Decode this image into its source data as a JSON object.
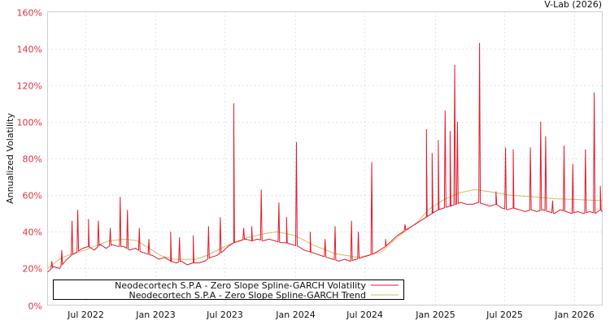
{
  "chart_data": {
    "type": "line",
    "title": "V-Lab (2026)",
    "xlabel": "",
    "ylabel": "Annualized Volatility",
    "ylim": [
      0,
      160
    ],
    "xlim": [
      "2022-03-25",
      "2026-03-15"
    ],
    "grid": true,
    "legend_placement": "bottom-left",
    "y_ticks": [
      "0%",
      "20%",
      "40%",
      "60%",
      "80%",
      "100%",
      "120%",
      "140%",
      "160%"
    ],
    "y_tick_values": [
      0,
      20,
      40,
      60,
      80,
      100,
      120,
      140,
      160
    ],
    "x_ticks": [
      "Jul 2022",
      "Jan 2023",
      "Jul 2023",
      "Jan 2024",
      "Jul 2024",
      "Jan 2025",
      "Jul 2025",
      "Jan 2026"
    ],
    "x_tick_dates": [
      "2022-07-01",
      "2023-01-01",
      "2023-07-01",
      "2024-01-01",
      "2024-07-01",
      "2025-01-01",
      "2025-07-01",
      "2026-01-01"
    ],
    "colors": {
      "volatility": "#e31a2a",
      "trend": "#d8b865",
      "ytick": "#e0303f"
    },
    "series": [
      {
        "name": "Neodecortech S.P.A - Zero Slope Spline-GARCH Volatility",
        "baseline": [
          [
            "2022-03-25",
            18
          ],
          [
            "2022-04-10",
            21
          ],
          [
            "2022-04-25",
            20
          ],
          [
            "2022-05-10",
            24
          ],
          [
            "2022-05-25",
            27
          ],
          [
            "2022-06-10",
            29
          ],
          [
            "2022-06-25",
            31
          ],
          [
            "2022-07-10",
            32
          ],
          [
            "2022-07-25",
            30
          ],
          [
            "2022-08-10",
            33
          ],
          [
            "2022-08-25",
            31
          ],
          [
            "2022-09-10",
            33
          ],
          [
            "2022-09-25",
            32
          ],
          [
            "2022-10-10",
            32
          ],
          [
            "2022-10-25",
            30
          ],
          [
            "2022-11-10",
            31
          ],
          [
            "2022-11-25",
            29
          ],
          [
            "2022-12-10",
            28
          ],
          [
            "2022-12-25",
            27
          ],
          [
            "2023-01-10",
            25
          ],
          [
            "2023-01-25",
            26
          ],
          [
            "2023-02-10",
            24
          ],
          [
            "2023-02-25",
            23
          ],
          [
            "2023-03-10",
            24
          ],
          [
            "2023-03-25",
            22
          ],
          [
            "2023-04-10",
            23
          ],
          [
            "2023-04-25",
            23
          ],
          [
            "2023-05-10",
            24
          ],
          [
            "2023-05-25",
            26
          ],
          [
            "2023-06-10",
            27
          ],
          [
            "2023-06-25",
            29
          ],
          [
            "2023-07-10",
            32
          ],
          [
            "2023-07-25",
            34
          ],
          [
            "2023-08-10",
            35
          ],
          [
            "2023-08-25",
            36
          ],
          [
            "2023-09-10",
            35
          ],
          [
            "2023-09-25",
            36
          ],
          [
            "2023-10-10",
            35
          ],
          [
            "2023-10-25",
            36
          ],
          [
            "2023-11-10",
            35
          ],
          [
            "2023-11-25",
            34
          ],
          [
            "2023-12-10",
            34
          ],
          [
            "2023-12-25",
            33
          ],
          [
            "2024-01-10",
            32
          ],
          [
            "2024-01-25",
            30
          ],
          [
            "2024-02-10",
            29
          ],
          [
            "2024-02-25",
            28
          ],
          [
            "2024-03-10",
            27
          ],
          [
            "2024-03-25",
            26
          ],
          [
            "2024-04-10",
            25
          ],
          [
            "2024-04-25",
            24
          ],
          [
            "2024-05-10",
            25
          ],
          [
            "2024-05-25",
            24
          ],
          [
            "2024-06-10",
            25
          ],
          [
            "2024-06-25",
            26
          ],
          [
            "2024-07-10",
            27
          ],
          [
            "2024-07-25",
            28
          ],
          [
            "2024-08-10",
            30
          ],
          [
            "2024-08-25",
            32
          ],
          [
            "2024-09-10",
            35
          ],
          [
            "2024-09-25",
            38
          ],
          [
            "2024-10-10",
            40
          ],
          [
            "2024-10-25",
            42
          ],
          [
            "2024-11-10",
            44
          ],
          [
            "2024-11-25",
            46
          ],
          [
            "2024-12-10",
            48
          ],
          [
            "2024-12-25",
            50
          ],
          [
            "2025-01-10",
            52
          ],
          [
            "2025-01-25",
            53
          ],
          [
            "2025-02-10",
            54
          ],
          [
            "2025-02-25",
            55
          ],
          [
            "2025-03-10",
            56
          ],
          [
            "2025-03-25",
            55
          ],
          [
            "2025-04-10",
            55
          ],
          [
            "2025-04-25",
            56
          ],
          [
            "2025-05-10",
            55
          ],
          [
            "2025-05-25",
            54
          ],
          [
            "2025-06-10",
            55
          ],
          [
            "2025-06-25",
            53
          ],
          [
            "2025-07-10",
            52
          ],
          [
            "2025-07-25",
            53
          ],
          [
            "2025-08-10",
            52
          ],
          [
            "2025-08-25",
            51
          ],
          [
            "2025-09-10",
            52
          ],
          [
            "2025-09-25",
            51
          ],
          [
            "2025-10-10",
            52
          ],
          [
            "2025-10-25",
            51
          ],
          [
            "2025-11-10",
            50
          ],
          [
            "2025-11-25",
            52
          ],
          [
            "2025-12-10",
            51
          ],
          [
            "2025-12-25",
            50
          ],
          [
            "2026-01-10",
            51
          ],
          [
            "2026-01-25",
            50
          ],
          [
            "2026-02-10",
            51
          ],
          [
            "2026-02-25",
            50
          ],
          [
            "2026-03-10",
            52
          ],
          [
            "2026-03-15",
            51
          ]
        ],
        "spikes": [
          [
            "2022-04-05",
            24
          ],
          [
            "2022-05-01",
            30
          ],
          [
            "2022-05-28",
            46
          ],
          [
            "2022-06-12",
            52
          ],
          [
            "2022-07-10",
            47
          ],
          [
            "2022-08-05",
            46
          ],
          [
            "2022-09-05",
            42
          ],
          [
            "2022-10-01",
            59
          ],
          [
            "2022-10-20",
            52
          ],
          [
            "2022-11-20",
            42
          ],
          [
            "2022-12-15",
            36
          ],
          [
            "2023-02-10",
            40
          ],
          [
            "2023-03-05",
            37
          ],
          [
            "2023-04-10",
            38
          ],
          [
            "2023-05-20",
            43
          ],
          [
            "2023-06-20",
            48
          ],
          [
            "2023-07-25",
            110
          ],
          [
            "2023-08-20",
            42
          ],
          [
            "2023-09-10",
            43
          ],
          [
            "2023-10-05",
            63
          ],
          [
            "2023-11-20",
            56
          ],
          [
            "2023-12-10",
            48
          ],
          [
            "2024-01-05",
            89
          ],
          [
            "2024-02-10",
            40
          ],
          [
            "2024-03-20",
            36
          ],
          [
            "2024-04-15",
            43
          ],
          [
            "2024-05-28",
            46
          ],
          [
            "2024-06-15",
            40
          ],
          [
            "2024-07-20",
            78
          ],
          [
            "2024-08-25",
            36
          ],
          [
            "2024-10-15",
            44
          ],
          [
            "2024-12-10",
            96
          ],
          [
            "2024-12-25",
            83
          ],
          [
            "2025-01-10",
            90
          ],
          [
            "2025-01-28",
            106
          ],
          [
            "2025-02-10",
            95
          ],
          [
            "2025-02-22",
            131
          ],
          [
            "2025-03-01",
            100
          ],
          [
            "2025-04-28",
            143
          ],
          [
            "2025-06-10",
            62
          ],
          [
            "2025-07-05",
            86
          ],
          [
            "2025-07-25",
            85
          ],
          [
            "2025-09-08",
            86
          ],
          [
            "2025-10-05",
            100
          ],
          [
            "2025-10-18",
            92
          ],
          [
            "2025-11-05",
            57
          ],
          [
            "2025-12-05",
            87
          ],
          [
            "2025-12-28",
            77
          ],
          [
            "2026-01-30",
            85
          ],
          [
            "2026-02-22",
            116
          ],
          [
            "2026-03-10",
            65
          ]
        ]
      },
      {
        "name": "Neodecortech S.P.A - Zero Slope Spline-GARCH Trend",
        "points": [
          [
            "2022-03-25",
            20
          ],
          [
            "2022-05-01",
            26
          ],
          [
            "2022-07-01",
            30
          ],
          [
            "2022-09-01",
            35
          ],
          [
            "2022-10-15",
            36
          ],
          [
            "2022-11-15",
            35
          ],
          [
            "2022-12-15",
            31
          ],
          [
            "2023-01-15",
            27
          ],
          [
            "2023-02-15",
            25
          ],
          [
            "2023-04-15",
            25
          ],
          [
            "2023-05-15",
            27
          ],
          [
            "2023-07-01",
            32
          ],
          [
            "2023-09-01",
            37
          ],
          [
            "2023-10-15",
            39
          ],
          [
            "2023-11-15",
            40
          ],
          [
            "2024-01-01",
            38
          ],
          [
            "2024-02-15",
            33
          ],
          [
            "2024-04-15",
            28
          ],
          [
            "2024-06-15",
            26
          ],
          [
            "2024-08-15",
            29
          ],
          [
            "2024-10-01",
            38
          ],
          [
            "2024-11-15",
            45
          ],
          [
            "2024-12-15",
            52
          ],
          [
            "2025-01-20",
            57
          ],
          [
            "2025-03-01",
            61
          ],
          [
            "2025-04-15",
            63
          ],
          [
            "2025-05-20",
            62
          ],
          [
            "2025-07-15",
            60
          ],
          [
            "2025-09-15",
            59
          ],
          [
            "2025-11-15",
            58
          ],
          [
            "2026-01-15",
            57.5
          ],
          [
            "2026-03-15",
            57
          ]
        ]
      }
    ]
  }
}
